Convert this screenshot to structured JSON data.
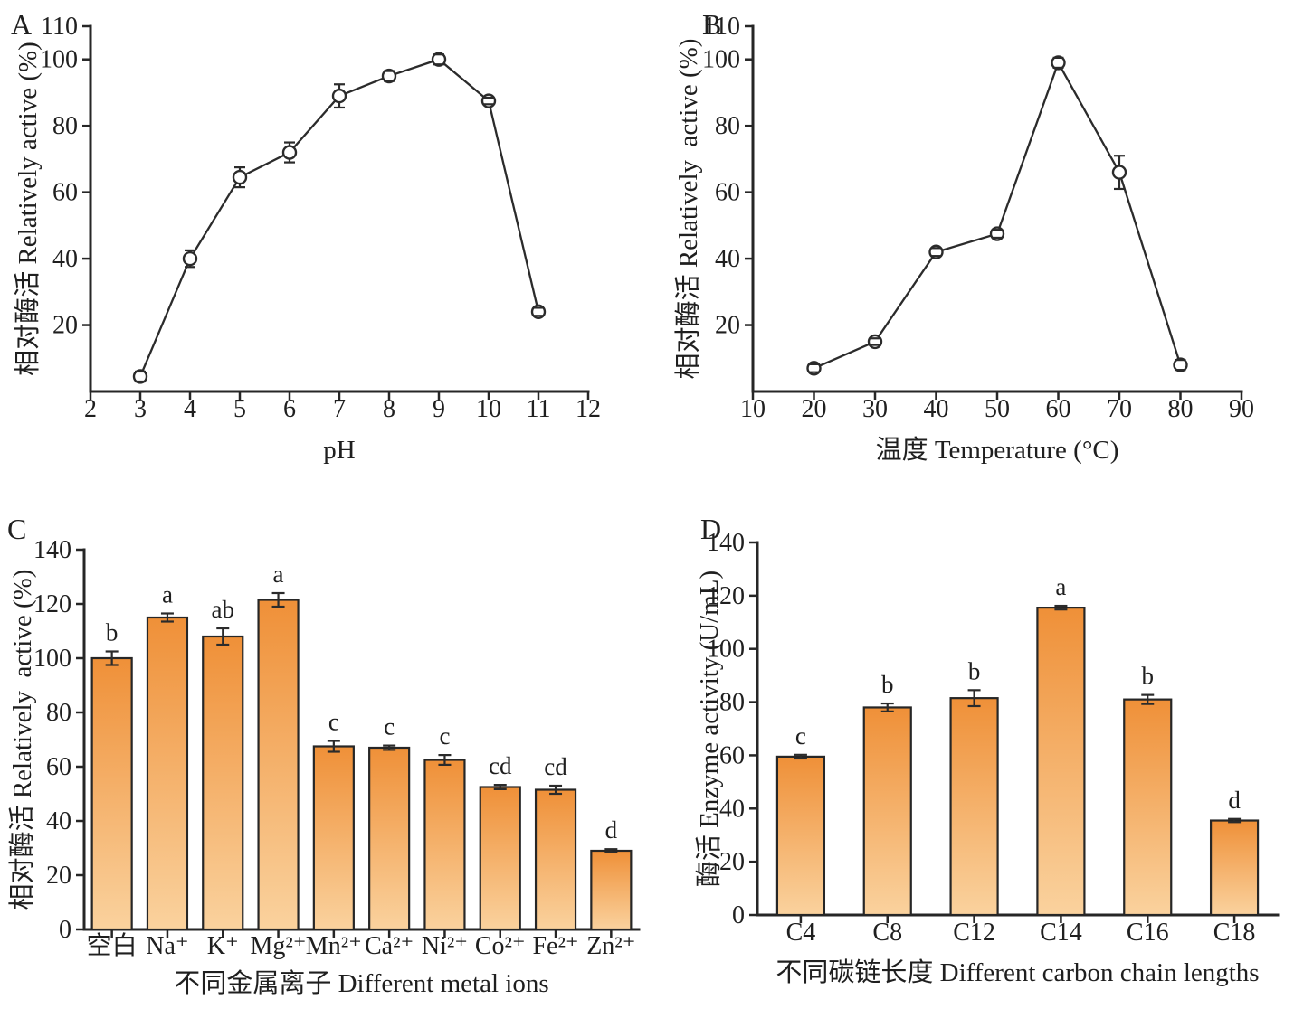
{
  "figure_title": "",
  "colors": {
    "background": "#ffffff",
    "axis": "#262626",
    "text": "#1f1f1f",
    "line_series": "#2b2b2b",
    "marker_fill": "#ffffff",
    "marker_stroke": "#2b2b2b",
    "error_bar": "#2b2b2b",
    "bar_gradient_top": "#EF9038",
    "bar_gradient_bottom": "#FAD29E",
    "bar_border": "#262626"
  },
  "chart_data": [
    {
      "panel": "A",
      "type": "line",
      "x": [
        3,
        4,
        5,
        6,
        7,
        8,
        9,
        10,
        11
      ],
      "y": [
        4.5,
        40,
        64.5,
        72,
        89,
        95,
        100,
        87.5,
        24
      ],
      "yerr": [
        1.5,
        2.5,
        3,
        3,
        3.5,
        1.5,
        1.5,
        1,
        1.2
      ],
      "xlabel": "pH",
      "ylabel": "相对酶活 Relatively active (%)",
      "xlim": [
        2,
        12
      ],
      "xticks": [
        2,
        3,
        4,
        5,
        6,
        7,
        8,
        9,
        10,
        11,
        12
      ],
      "ylim": [
        0,
        110
      ],
      "yticks": [
        20,
        40,
        60,
        80,
        100,
        110
      ],
      "grid": false,
      "legend": null,
      "marker": "open-circle"
    },
    {
      "panel": "B",
      "type": "line",
      "x": [
        20,
        30,
        40,
        50,
        60,
        70,
        80
      ],
      "y": [
        7,
        15,
        42,
        47.5,
        99,
        66,
        8
      ],
      "yerr": [
        1.2,
        1,
        1.2,
        1.2,
        1.5,
        5,
        1.5
      ],
      "xlabel": "温度 Temperature (°C)",
      "ylabel": "相对酶活 Relatively  active (%)",
      "xlim": [
        10,
        90
      ],
      "xticks": [
        10,
        20,
        30,
        40,
        50,
        60,
        70,
        80,
        90
      ],
      "ylim": [
        0,
        110
      ],
      "yticks": [
        20,
        40,
        60,
        80,
        100,
        110
      ],
      "grid": false,
      "legend": null,
      "marker": "open-circle"
    },
    {
      "panel": "C",
      "type": "bar",
      "categories": [
        "空白",
        "Na⁺",
        "K⁺",
        "Mg²⁺",
        "Mn²⁺",
        "Ca²⁺",
        "Ni²⁺",
        "Co²⁺",
        "Fe²⁺",
        "Zn²⁺"
      ],
      "values": [
        100,
        115,
        108,
        121.5,
        67.5,
        67,
        62.5,
        52.5,
        51.5,
        29
      ],
      "yerr": [
        2.5,
        1.5,
        3,
        2.5,
        2,
        0.8,
        1.8,
        0.8,
        1.5,
        0.6
      ],
      "sig_letters": [
        "b",
        "a",
        "ab",
        "a",
        "c",
        "c",
        "c",
        "cd",
        "cd",
        "d"
      ],
      "xlabel": "不同金属离子 Different metal ions",
      "ylabel": "相对酶活 Relatively  active (%)",
      "ylim": [
        0,
        140
      ],
      "yticks": [
        0,
        20,
        40,
        60,
        80,
        100,
        120,
        140
      ],
      "grid": false,
      "legend": null
    },
    {
      "panel": "D",
      "type": "bar",
      "categories": [
        "C4",
        "C8",
        "C12",
        "C14",
        "C16",
        "C18"
      ],
      "values": [
        59.5,
        78,
        81.5,
        115.5,
        81,
        35.5
      ],
      "yerr": [
        0.7,
        1.5,
        3,
        0.7,
        1.7,
        0.6
      ],
      "sig_letters": [
        "c",
        "b",
        "b",
        "a",
        "b",
        "d"
      ],
      "xlabel": "不同碳链长度 Different carbon chain lengths",
      "ylabel": "酶活 Enzyme activity (U/mL)",
      "ylim": [
        0,
        140
      ],
      "yticks": [
        0,
        20,
        40,
        60,
        80,
        100,
        120,
        140
      ],
      "grid": false,
      "legend": null
    }
  ]
}
